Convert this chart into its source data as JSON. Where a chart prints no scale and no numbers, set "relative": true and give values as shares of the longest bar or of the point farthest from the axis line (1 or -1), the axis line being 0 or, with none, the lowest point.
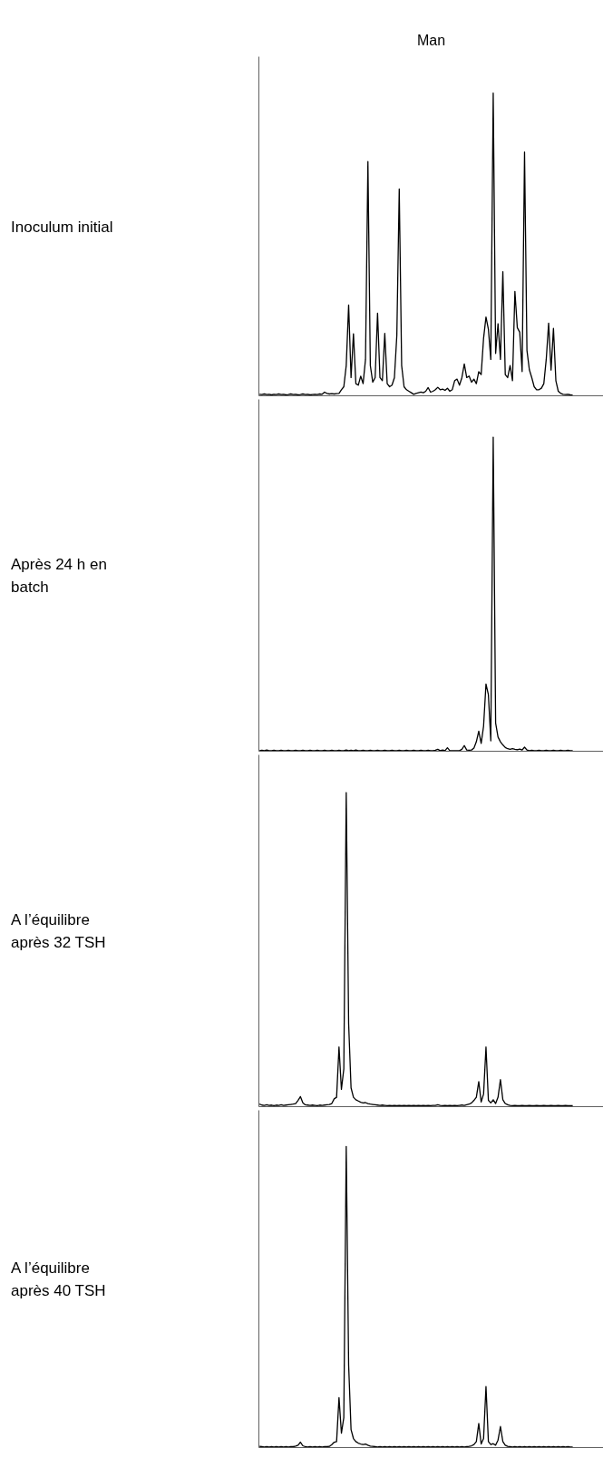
{
  "chart_data": [
    {
      "type": "line",
      "title": "Man",
      "ylabel": "Inoculum initial",
      "relative": true,
      "color": "#000000",
      "categories": [
        null,
        null,
        null,
        null,
        null,
        null,
        null,
        null,
        null,
        null,
        null,
        null,
        null,
        null,
        null,
        null,
        null,
        null,
        null,
        null,
        null,
        null,
        null,
        null,
        null,
        null,
        null,
        null,
        null,
        null,
        null,
        null,
        null,
        null,
        null,
        null,
        null,
        null,
        null,
        null,
        null,
        null,
        null,
        null,
        null,
        null,
        null,
        null,
        null,
        null,
        null,
        null,
        null,
        null,
        null,
        null,
        null,
        null,
        null,
        null,
        null,
        null,
        null,
        null,
        null,
        null,
        null,
        null,
        null,
        null,
        null,
        null,
        null,
        null,
        null,
        null,
        null,
        null,
        null,
        null,
        null,
        null,
        null,
        null,
        null,
        null,
        null,
        null,
        null,
        null,
        null,
        null,
        null,
        null,
        null,
        null,
        null,
        null,
        null,
        null,
        null,
        null,
        null,
        null,
        null,
        null,
        null,
        null,
        null,
        null,
        null,
        null,
        null,
        null,
        null,
        null,
        null,
        null,
        null,
        null,
        null,
        null,
        null,
        null,
        null,
        null,
        null,
        null,
        null,
        null,
        null,
        null,
        null,
        null,
        null,
        null,
        null,
        null,
        null,
        null,
        null,
        null,
        null
      ],
      "values": [
        0.005,
        0.004,
        0.006,
        0.004,
        0.005,
        0.003,
        0.005,
        0.004,
        0.006,
        0.004,
        0.005,
        0.003,
        0.004,
        0.006,
        0.004,
        0.005,
        0.003,
        0.004,
        0.006,
        0.004,
        0.005,
        0.003,
        0.004,
        0.005,
        0.004,
        0.006,
        0.005,
        0.012,
        0.008,
        0.006,
        0.007,
        0.006,
        0.007,
        0.008,
        0.02,
        0.03,
        0.1,
        0.3,
        0.06,
        0.205,
        0.04,
        0.035,
        0.065,
        0.04,
        0.12,
        0.774,
        0.1,
        0.045,
        0.06,
        0.273,
        0.06,
        0.05,
        0.206,
        0.04,
        0.03,
        0.035,
        0.06,
        0.2,
        0.683,
        0.1,
        0.03,
        0.02,
        0.015,
        0.01,
        0.005,
        0.008,
        0.01,
        0.012,
        0.01,
        0.015,
        0.027,
        0.012,
        0.015,
        0.02,
        0.028,
        0.02,
        0.022,
        0.018,
        0.025,
        0.015,
        0.02,
        0.05,
        0.055,
        0.035,
        0.06,
        0.105,
        0.06,
        0.065,
        0.045,
        0.055,
        0.04,
        0.08,
        0.07,
        0.19,
        0.26,
        0.22,
        0.12,
        1.0,
        0.14,
        0.238,
        0.12,
        0.41,
        0.07,
        0.06,
        0.1,
        0.05,
        0.345,
        0.225,
        0.21,
        0.08,
        0.805,
        0.15,
        0.086,
        0.06,
        0.03,
        0.02,
        0.02,
        0.025,
        0.04,
        0.12,
        0.24,
        0.085,
        0.223,
        0.05,
        0.015,
        0.008,
        0.005,
        0.004,
        0.005,
        0.003,
        0.002,
        null,
        null,
        null,
        null,
        null,
        null,
        null,
        null,
        null,
        null,
        null,
        null
      ]
    },
    {
      "type": "line",
      "ylabel": "Après 24 h en batch",
      "relative": true,
      "color": "#000000",
      "categories": [
        null,
        null,
        null,
        null,
        null,
        null,
        null,
        null,
        null,
        null,
        null,
        null,
        null,
        null,
        null,
        null,
        null,
        null,
        null,
        null,
        null,
        null,
        null,
        null,
        null,
        null,
        null,
        null,
        null,
        null,
        null,
        null,
        null,
        null,
        null,
        null,
        null,
        null,
        null,
        null,
        null,
        null,
        null,
        null,
        null,
        null,
        null,
        null,
        null,
        null,
        null,
        null,
        null,
        null,
        null,
        null,
        null,
        null,
        null,
        null,
        null,
        null,
        null,
        null,
        null,
        null,
        null,
        null,
        null,
        null,
        null,
        null,
        null,
        null,
        null,
        null,
        null,
        null,
        null,
        null,
        null,
        null,
        null,
        null,
        null,
        null,
        null,
        null,
        null,
        null,
        null,
        null,
        null,
        null,
        null,
        null,
        null,
        null,
        null,
        null,
        null,
        null,
        null,
        null,
        null,
        null,
        null,
        null,
        null,
        null,
        null,
        null,
        null,
        null,
        null,
        null,
        null,
        null,
        null,
        null,
        null,
        null,
        null,
        null,
        null,
        null,
        null,
        null,
        null,
        null,
        null,
        null,
        null,
        null,
        null,
        null,
        null,
        null,
        null,
        null,
        null,
        null,
        null
      ],
      "values": [
        0.002,
        0.003,
        0.002,
        0.004,
        0.002,
        0.002,
        0.003,
        0.002,
        0.002,
        0.003,
        0.002,
        0.002,
        0.003,
        0.002,
        0.002,
        0.003,
        0.002,
        0.002,
        0.003,
        0.002,
        0.002,
        0.003,
        0.002,
        0.002,
        0.003,
        0.002,
        0.002,
        0.003,
        0.002,
        0.002,
        0.003,
        0.002,
        0.002,
        0.003,
        0.002,
        0.002,
        0.004,
        0.002,
        0.003,
        0.002,
        0.004,
        0.002,
        0.002,
        0.003,
        0.002,
        0.002,
        0.003,
        0.002,
        0.002,
        0.003,
        0.002,
        0.002,
        0.003,
        0.002,
        0.002,
        0.003,
        0.002,
        0.002,
        0.003,
        0.002,
        0.002,
        0.003,
        0.002,
        0.002,
        0.003,
        0.002,
        0.002,
        0.003,
        0.002,
        0.002,
        0.003,
        0.002,
        0.002,
        0.003,
        0.006,
        0.002,
        0.004,
        0.002,
        0.011,
        0.002,
        0.002,
        0.002,
        0.002,
        0.002,
        0.006,
        0.018,
        0.004,
        0.003,
        0.004,
        0.01,
        0.03,
        0.064,
        0.025,
        0.08,
        0.214,
        0.18,
        0.033,
        1.0,
        0.09,
        0.045,
        0.03,
        0.02,
        0.012,
        0.008,
        0.006,
        0.008,
        0.006,
        0.005,
        0.007,
        0.004,
        0.013,
        0.004,
        0.002,
        0.003,
        0.002,
        0.002,
        0.003,
        0.002,
        0.002,
        0.003,
        0.002,
        0.002,
        0.003,
        0.002,
        0.002,
        0.003,
        0.002,
        0.002,
        0.003,
        0.002,
        0.002,
        null,
        null,
        null,
        null,
        null,
        null,
        null,
        null,
        null,
        null,
        null,
        null
      ]
    },
    {
      "type": "line",
      "ylabel": "A l’équilibre après 32 TSH",
      "relative": true,
      "color": "#000000",
      "categories": [
        null,
        null,
        null,
        null,
        null,
        null,
        null,
        null,
        null,
        null,
        null,
        null,
        null,
        null,
        null,
        null,
        null,
        null,
        null,
        null,
        null,
        null,
        null,
        null,
        null,
        null,
        null,
        null,
        null,
        null,
        null,
        null,
        null,
        null,
        null,
        null,
        null,
        null,
        null,
        null,
        null,
        null,
        null,
        null,
        null,
        null,
        null,
        null,
        null,
        null,
        null,
        null,
        null,
        null,
        null,
        null,
        null,
        null,
        null,
        null,
        null,
        null,
        null,
        null,
        null,
        null,
        null,
        null,
        null,
        null,
        null,
        null,
        null,
        null,
        null,
        null,
        null,
        null,
        null,
        null,
        null,
        null,
        null,
        null,
        null,
        null,
        null,
        null,
        null,
        null,
        null,
        null,
        null,
        null,
        null,
        null,
        null,
        null,
        null,
        null,
        null,
        null,
        null,
        null,
        null,
        null,
        null,
        null,
        null,
        null,
        null,
        null,
        null,
        null,
        null,
        null,
        null,
        null,
        null,
        null,
        null,
        null,
        null,
        null,
        null,
        null,
        null,
        null,
        null,
        null,
        null,
        null,
        null,
        null,
        null,
        null,
        null,
        null,
        null,
        null,
        null,
        null,
        null
      ],
      "values": [
        0.008,
        0.005,
        0.004,
        0.006,
        0.004,
        0.005,
        0.003,
        0.005,
        0.004,
        0.006,
        0.004,
        0.005,
        0.006,
        0.007,
        0.008,
        0.01,
        0.02,
        0.032,
        0.012,
        0.006,
        0.005,
        0.004,
        0.005,
        0.004,
        0.003,
        0.005,
        0.004,
        0.005,
        0.006,
        0.007,
        0.01,
        0.025,
        0.03,
        0.19,
        0.055,
        0.12,
        1.0,
        0.264,
        0.06,
        0.03,
        0.022,
        0.018,
        0.014,
        0.012,
        0.013,
        0.01,
        0.008,
        0.007,
        0.006,
        0.005,
        0.004,
        0.005,
        0.004,
        0.003,
        0.004,
        0.003,
        0.004,
        0.003,
        0.004,
        0.003,
        0.004,
        0.003,
        0.004,
        0.003,
        0.004,
        0.003,
        0.004,
        0.003,
        0.004,
        0.003,
        0.004,
        0.003,
        0.004,
        0.004,
        0.006,
        0.004,
        0.003,
        0.004,
        0.003,
        0.004,
        0.003,
        0.004,
        0.003,
        0.004,
        0.005,
        0.004,
        0.006,
        0.008,
        0.012,
        0.02,
        0.03,
        0.08,
        0.015,
        0.04,
        0.19,
        0.02,
        0.012,
        0.022,
        0.01,
        0.03,
        0.086,
        0.022,
        0.01,
        0.006,
        0.004,
        0.003,
        0.004,
        0.003,
        0.003,
        0.004,
        0.003,
        0.003,
        0.004,
        0.003,
        0.003,
        0.004,
        0.003,
        0.003,
        0.004,
        0.003,
        0.003,
        0.004,
        0.003,
        0.003,
        0.004,
        0.003,
        0.003,
        0.004,
        0.003,
        0.003,
        0.003,
        null,
        null,
        null,
        null,
        null,
        null,
        null,
        null,
        null,
        null,
        null,
        null
      ]
    },
    {
      "type": "line",
      "ylabel": "A l’équilibre après 40 TSH",
      "relative": true,
      "color": "#000000",
      "categories": [
        null,
        null,
        null,
        null,
        null,
        null,
        null,
        null,
        null,
        null,
        null,
        null,
        null,
        null,
        null,
        null,
        null,
        null,
        null,
        null,
        null,
        null,
        null,
        null,
        null,
        null,
        null,
        null,
        null,
        null,
        null,
        null,
        null,
        null,
        null,
        null,
        null,
        null,
        null,
        null,
        null,
        null,
        null,
        null,
        null,
        null,
        null,
        null,
        null,
        null,
        null,
        null,
        null,
        null,
        null,
        null,
        null,
        null,
        null,
        null,
        null,
        null,
        null,
        null,
        null,
        null,
        null,
        null,
        null,
        null,
        null,
        null,
        null,
        null,
        null,
        null,
        null,
        null,
        null,
        null,
        null,
        null,
        null,
        null,
        null,
        null,
        null,
        null,
        null,
        null,
        null,
        null,
        null,
        null,
        null,
        null,
        null,
        null,
        null,
        null,
        null,
        null,
        null,
        null,
        null,
        null,
        null,
        null,
        null,
        null,
        null,
        null,
        null,
        null,
        null,
        null,
        null,
        null,
        null,
        null,
        null,
        null,
        null,
        null,
        null,
        null,
        null,
        null,
        null,
        null,
        null,
        null,
        null,
        null,
        null,
        null,
        null,
        null,
        null,
        null,
        null,
        null,
        null
      ],
      "values": [
        0.004,
        0.003,
        0.002,
        0.003,
        0.002,
        0.003,
        0.002,
        0.003,
        0.002,
        0.003,
        0.002,
        0.003,
        0.002,
        0.003,
        0.003,
        0.005,
        0.008,
        0.018,
        0.006,
        0.003,
        0.002,
        0.003,
        0.002,
        0.003,
        0.002,
        0.003,
        0.002,
        0.003,
        0.003,
        0.004,
        0.01,
        0.018,
        0.02,
        0.166,
        0.048,
        0.1,
        1.0,
        0.274,
        0.06,
        0.03,
        0.02,
        0.015,
        0.012,
        0.01,
        0.012,
        0.008,
        0.005,
        0.004,
        0.003,
        0.002,
        0.003,
        0.002,
        0.003,
        0.002,
        0.003,
        0.002,
        0.003,
        0.002,
        0.003,
        0.002,
        0.003,
        0.002,
        0.003,
        0.002,
        0.003,
        0.002,
        0.003,
        0.002,
        0.003,
        0.002,
        0.003,
        0.002,
        0.003,
        0.002,
        0.003,
        0.002,
        0.003,
        0.002,
        0.003,
        0.002,
        0.003,
        0.002,
        0.003,
        0.002,
        0.003,
        0.002,
        0.003,
        0.004,
        0.006,
        0.01,
        0.02,
        0.08,
        0.012,
        0.03,
        0.203,
        0.02,
        0.01,
        0.013,
        0.008,
        0.025,
        0.07,
        0.02,
        0.008,
        0.004,
        0.003,
        0.002,
        0.003,
        0.002,
        0.003,
        0.002,
        0.003,
        0.002,
        0.003,
        0.002,
        0.003,
        0.002,
        0.003,
        0.002,
        0.003,
        0.002,
        0.003,
        0.002,
        0.003,
        0.002,
        0.003,
        0.002,
        0.003,
        0.002,
        0.003,
        0.002,
        0.002,
        null,
        null,
        null,
        null,
        null,
        null,
        null,
        null,
        null,
        null,
        null,
        null
      ]
    }
  ]
}
